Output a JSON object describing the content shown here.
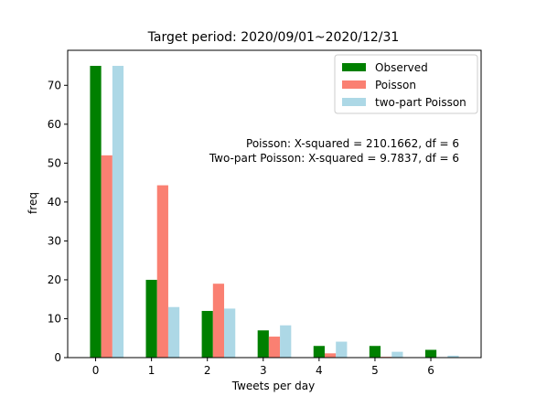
{
  "chart_data": {
    "type": "bar",
    "title": "Target period: 2020/09/01~2020/12/31",
    "xlabel": "Tweets per day",
    "ylabel": "freq",
    "categories": [
      "0",
      "1",
      "2",
      "3",
      "4",
      "5",
      "6"
    ],
    "x": [
      0,
      1,
      2,
      3,
      4,
      5,
      6
    ],
    "xlim": [
      -0.5,
      6.9
    ],
    "ylim": [
      0,
      79
    ],
    "yticks": [
      0,
      10,
      20,
      30,
      40,
      50,
      60,
      70
    ],
    "grid": false,
    "legend_position": "top-right",
    "series": [
      {
        "name": "Observed",
        "color": "#008000",
        "values": [
          75,
          20,
          12,
          7,
          3,
          3,
          2
        ]
      },
      {
        "name": "Poisson",
        "color": "#fa8072",
        "values": [
          52,
          44.3,
          19,
          5.4,
          1.1,
          0.2,
          0.03
        ]
      },
      {
        "name": "two-part Poisson",
        "color": "#add8e6",
        "values": [
          75,
          13,
          12.6,
          8.3,
          4.1,
          1.5,
          0.5
        ]
      }
    ],
    "annotations": [
      "Poisson: X-squared = 210.1662, df = 6",
      "Two-part Poisson: X-squared = 9.7837, df = 6"
    ]
  }
}
